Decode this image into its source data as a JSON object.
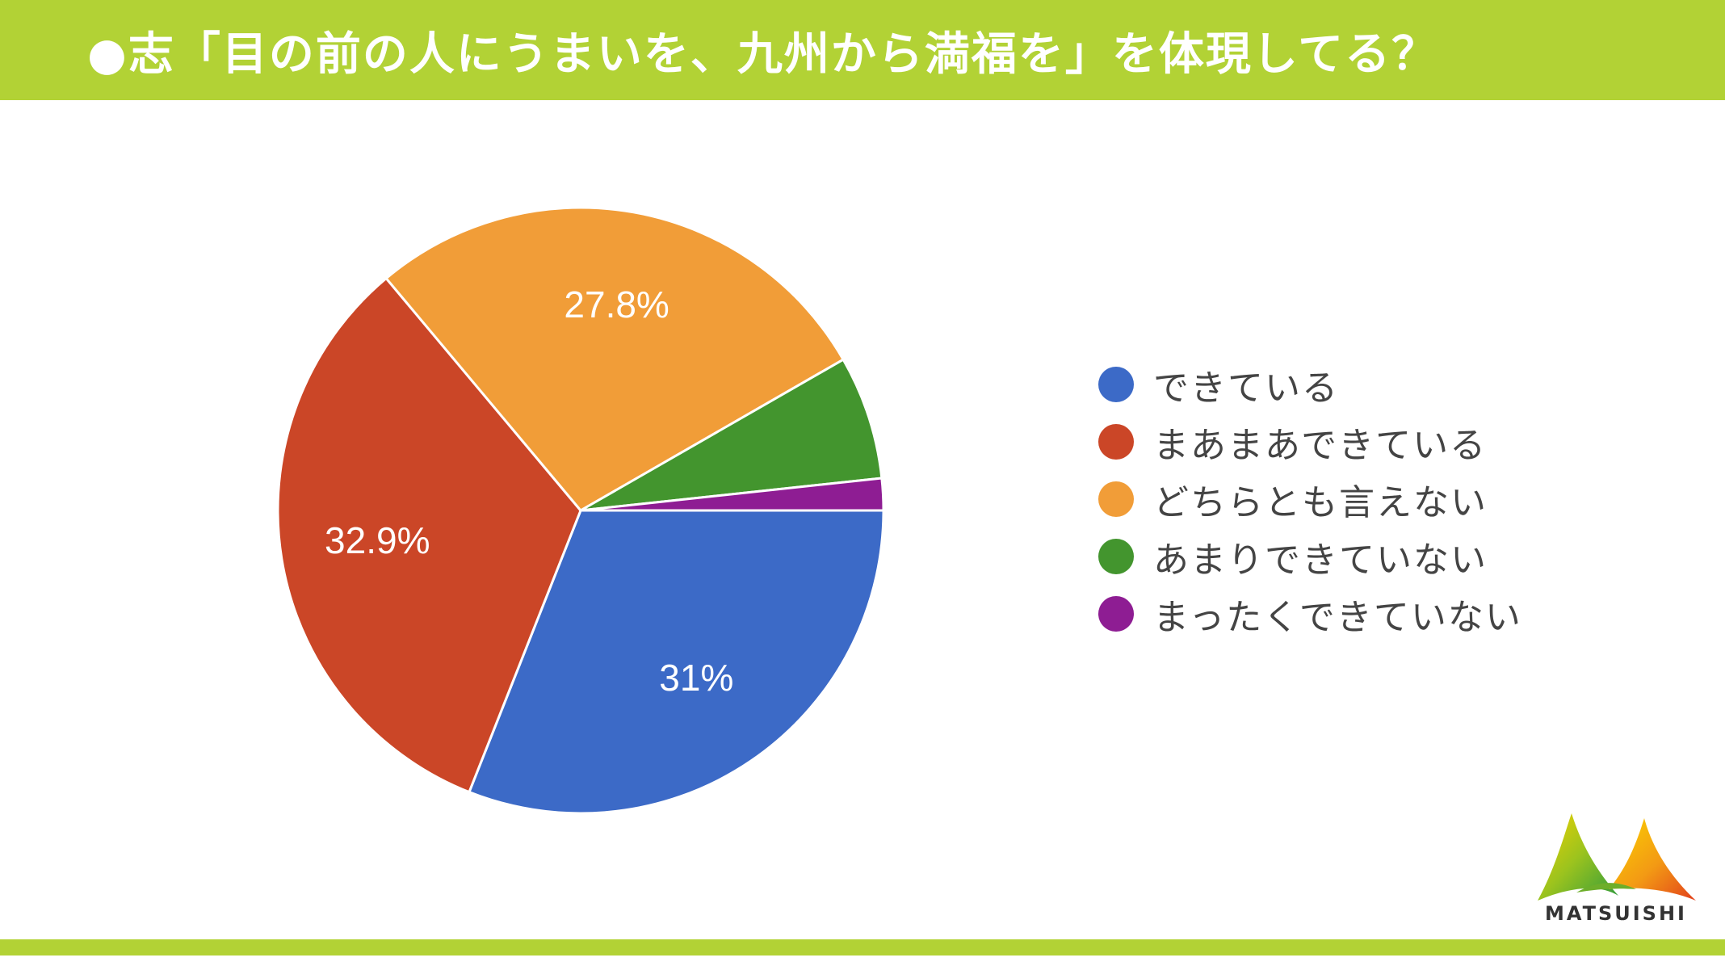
{
  "header": {
    "title": "●志「目の前の人にうまいを、九州から満福を」を体現してる？"
  },
  "chart_data": {
    "type": "pie",
    "categories": [
      "できている",
      "まあまあできている",
      "どちらとも言えない",
      "あまりできていない",
      "まったくできていない"
    ],
    "values": [
      31,
      32.9,
      27.8,
      6.6,
      1.7
    ],
    "labels": [
      "31%",
      "32.9%",
      "27.8%",
      "",
      ""
    ],
    "colors": [
      "#3c6ac7",
      "#cb4627",
      "#f19d38",
      "#43952e",
      "#8e1d93"
    ],
    "legend_position": "right"
  },
  "logo": {
    "text": "MATSUISHI"
  }
}
